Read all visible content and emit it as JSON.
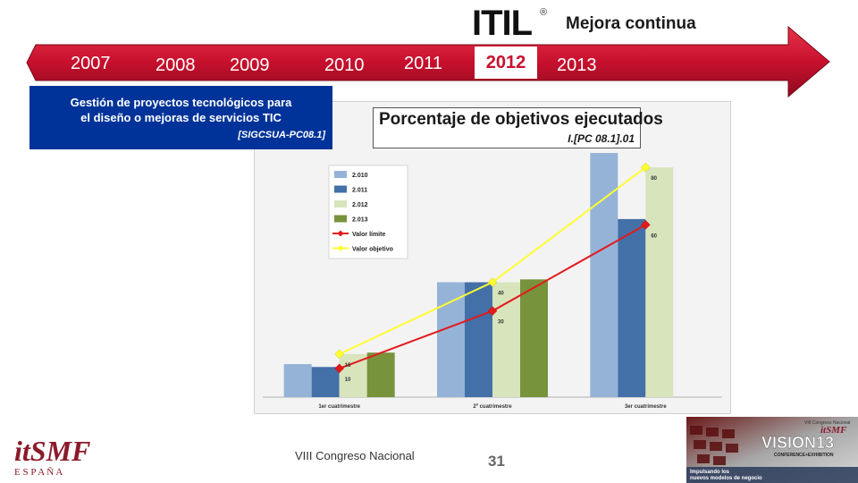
{
  "header": {
    "logo_text": "ITIL",
    "logo_reg": "®",
    "title": "Mejora continua"
  },
  "timeline": {
    "years": [
      "2007",
      "2008",
      "2009",
      "2010",
      "2011",
      "2012",
      "2013"
    ],
    "active_year": "2012"
  },
  "callout": {
    "line1": "Gestión de proyectos tecnológicos para",
    "line2": "el diseño o mejoras de servicios TIC",
    "ref": "[SIGCSUA-PC08.1]"
  },
  "chart_data": {
    "type": "bar",
    "title": "Porcentaje de objetivos ejecutados",
    "subtitle": "I.[PC 08.1].01",
    "categories": [
      "1er cuatrimestre",
      "2º cuatrimestre",
      "3er cuatrimestre"
    ],
    "series": [
      {
        "name": "2.010",
        "type": "bar",
        "color": "#95b3d7",
        "values": [
          11.5,
          40,
          85
        ]
      },
      {
        "name": "2.011",
        "type": "bar",
        "color": "#4470a8",
        "values": [
          10.5,
          40,
          62
        ]
      },
      {
        "name": "2.012",
        "type": "bar",
        "color": "#d8e4bc",
        "values": [
          15,
          40,
          80
        ]
      },
      {
        "name": "2.013",
        "type": "bar",
        "color": "#77933c",
        "values": [
          15.5,
          41,
          null
        ]
      },
      {
        "name": "Valor límite",
        "type": "line",
        "color": "#e31a1c",
        "values": [
          10,
          30,
          60
        ],
        "labels": [
          "10",
          "30",
          "60"
        ]
      },
      {
        "name": "Valor objetivo",
        "type": "line",
        "color": "#ffff33",
        "values": [
          15,
          40,
          80
        ],
        "labels": [
          "15",
          "40",
          "80"
        ]
      }
    ],
    "ylim": [
      0,
      90
    ],
    "legend_position": "top-left",
    "grid": false
  },
  "footer": {
    "logo_main": "itSMF",
    "logo_sub": "E S P A Ñ A",
    "center_text": "VIII Congreso Nacional",
    "page_number": "31"
  },
  "vision_banner": {
    "top_text": "VIII Congreso Nacional",
    "brand": "itSMF",
    "title": "VISION13",
    "subtitle": "CONFERENCE+EXHIBITION",
    "tagline1": "Impulsando los",
    "tagline2": "nuevos modelos de negocio"
  },
  "colors": {
    "timeline_red": "#c8102e",
    "callout_blue": "#003399"
  }
}
